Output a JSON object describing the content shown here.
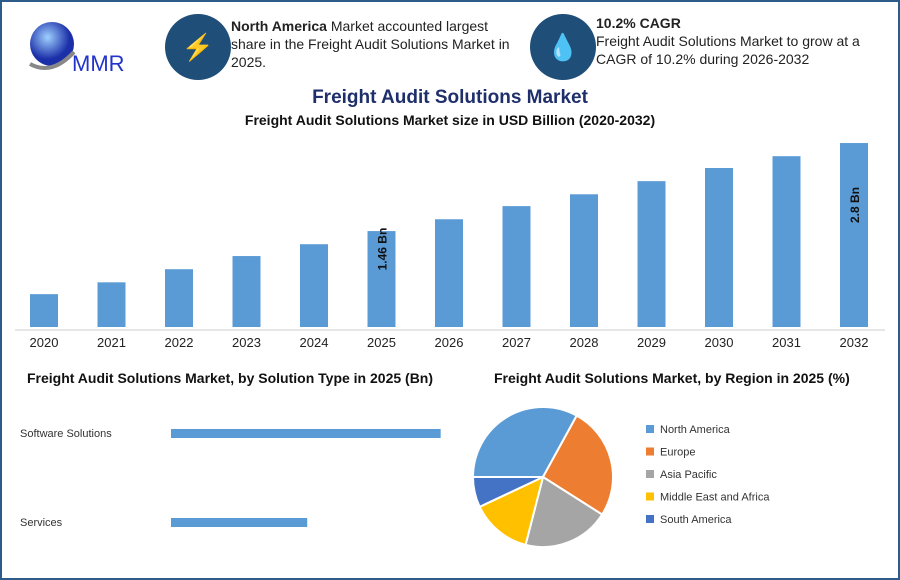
{
  "logo": {
    "text": "MMR"
  },
  "highlights": [
    {
      "icon": "lightning-icon",
      "bold": "North America",
      "text": " Market accounted largest share in the Freight Audit Solutions Market in 2025."
    },
    {
      "icon": "drop-icon",
      "bold": "10.2% CAGR",
      "text": "Freight Audit Solutions Market to grow at a CAGR of 10.2% during 2026-2032"
    }
  ],
  "main_title": "Freight Audit Solutions Market",
  "colors": {
    "bar": "#5b9bd5",
    "title": "#1f2f6b",
    "circle": "#1f4e79"
  },
  "chart_data": [
    {
      "type": "bar",
      "title": "Freight Audit Solutions Market size in USD Billion (2020-2032)",
      "categories": [
        "2020",
        "2021",
        "2022",
        "2023",
        "2024",
        "2025",
        "2026",
        "2027",
        "2028",
        "2029",
        "2030",
        "2031",
        "2032"
      ],
      "values": [
        0.5,
        0.68,
        0.88,
        1.08,
        1.26,
        1.46,
        1.64,
        1.84,
        2.02,
        2.22,
        2.42,
        2.6,
        2.8
      ],
      "data_labels": {
        "2025": "1.46 Bn",
        "2032": "2.8 Bn"
      },
      "ylim": [
        0,
        3
      ]
    },
    {
      "type": "bar",
      "orientation": "horizontal",
      "title": "Freight Audit Solutions Market, by Solution Type in 2025 (Bn)",
      "categories": [
        "Software Solutions",
        "Services"
      ],
      "values": [
        0.97,
        0.49
      ]
    },
    {
      "type": "pie",
      "title": "Freight Audit Solutions Market, by Region in 2025 (%)",
      "categories": [
        "North America",
        "Europe",
        "Asia Pacific",
        "Middle East and Africa",
        "South America"
      ],
      "values": [
        33,
        26,
        20,
        14,
        7
      ],
      "colors": [
        "#5b9bd5",
        "#ed7d31",
        "#a5a5a5",
        "#ffc000",
        "#4472c4"
      ],
      "legend": "right"
    }
  ]
}
